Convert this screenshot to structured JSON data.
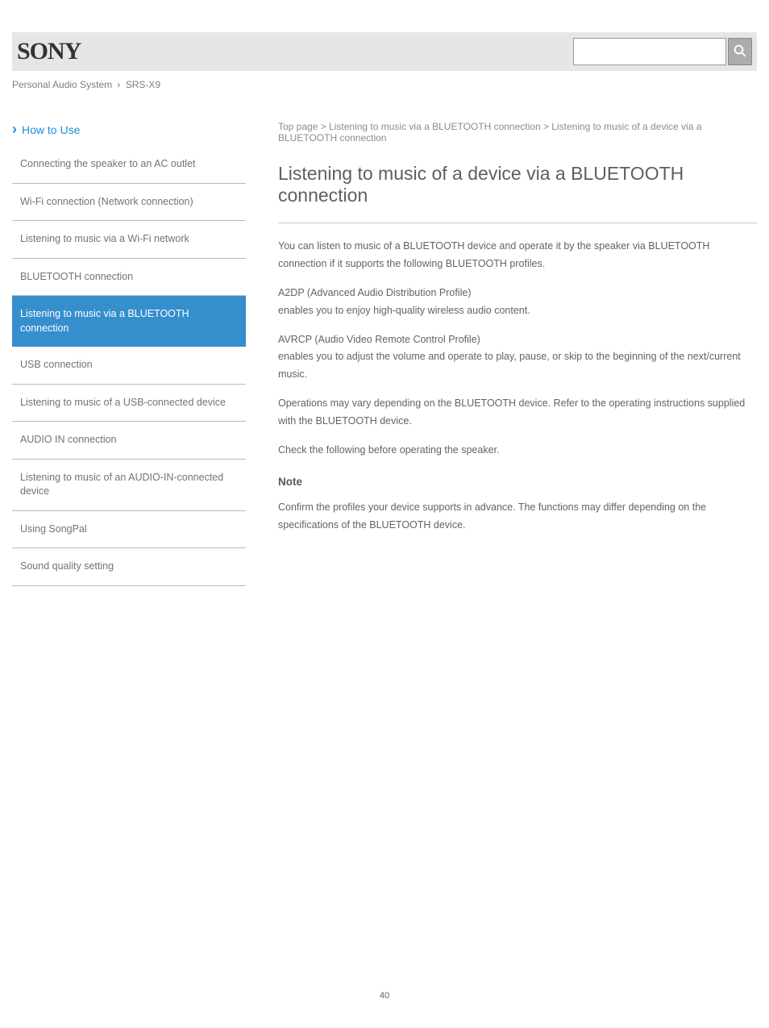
{
  "brand": "SONY",
  "top_links": {
    "product": "Personal Audio System",
    "model": "SRS-X9"
  },
  "search": {
    "placeholder": ""
  },
  "sidebar": {
    "howto_label": "How to Use",
    "items": [
      {
        "label": "Connecting the speaker to an AC outlet"
      },
      {
        "label": "Wi-Fi connection (Network connection)"
      },
      {
        "label": "Listening to music via a Wi-Fi network"
      },
      {
        "label": "BLUETOOTH connection"
      },
      {
        "label": "Listening to music via a BLUETOOTH connection"
      },
      {
        "label": "USB connection"
      },
      {
        "label": "Listening to music of a USB-connected device"
      },
      {
        "label": "AUDIO IN connection"
      },
      {
        "label": "Listening to music of an AUDIO-IN-connected device"
      },
      {
        "label": "Using SongPal"
      },
      {
        "label": "Sound quality setting"
      }
    ],
    "active_index": 4
  },
  "main": {
    "breadcrumb": "Top page > Listening to music via a BLUETOOTH connection > Listening to music of a device via a BLUETOOTH connection",
    "title": "Listening to music of a device via a BLUETOOTH connection",
    "paragraphs": [
      "You can listen to music of a BLUETOOTH device and operate it by the speaker via BLUETOOTH connection if it supports the following BLUETOOTH profiles.",
      "A2DP (Advanced Audio Distribution Profile)\nenables you to enjoy high-quality wireless audio content.",
      "AVRCP (Audio Video Remote Control Profile)\nenables you to adjust the volume and operate to play, pause, or skip to the beginning of the next/current music.",
      "Operations may vary depending on the BLUETOOTH device. Refer to the operating instructions supplied with the BLUETOOTH device.",
      "Check the following before operating the speaker."
    ],
    "subhead": "Note",
    "note": "Confirm the profiles your device supports in advance. The functions may differ depending on the specifications of the BLUETOOTH device."
  },
  "page_number": "40",
  "colors": {
    "header_bg": "#e6e6e6",
    "sidebar_active_bg": "#358fcc",
    "accent": "#1c8ddb",
    "text": "#51585f",
    "border": "#b8babc"
  }
}
